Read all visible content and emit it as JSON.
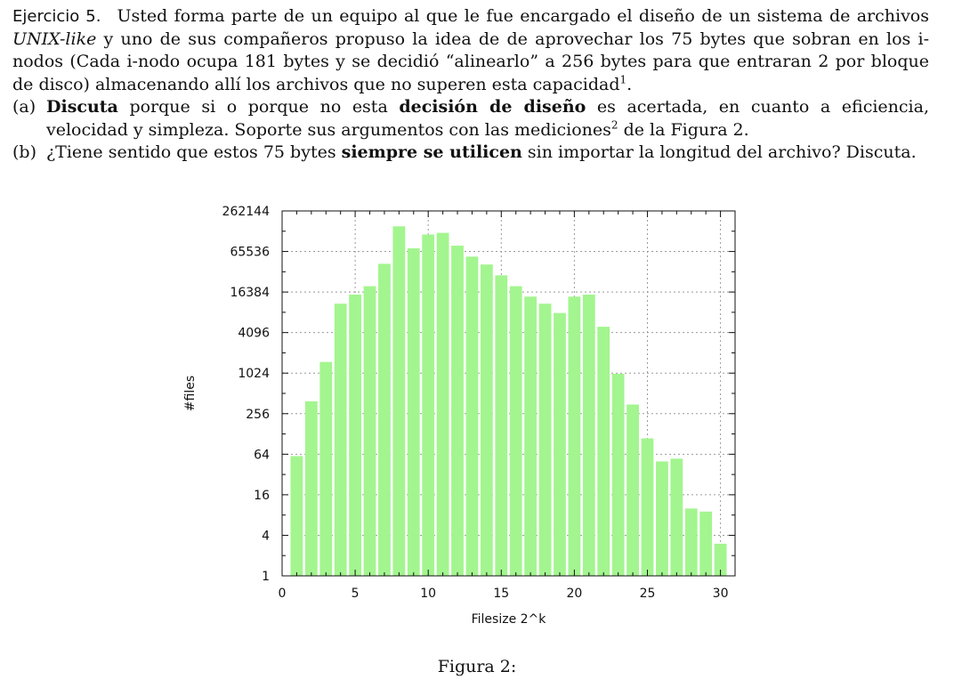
{
  "exercise": {
    "label": "Ejercicio 5.",
    "intro_1": "Usted forma parte de un equipo al que le fue encargado el diseño de un sistema de archivos",
    "intro_unix": "UNIX-like",
    "intro_2": "y uno de sus compañeros propuso la idea de de aprovechar los 75 bytes que sobran en los i-nodos (Cada i-nodo ocupa 181 bytes y se decidió “alinearlo” a 256 bytes para que entraran 2 por bloque de disco) almacenando allí los archivos que no superen esta capacidad",
    "intro_footnote": "1",
    "intro_end": ".",
    "items": [
      {
        "label": "(a)",
        "bold_1": "Discuta",
        "text_1": "porque si o porque no esta",
        "bold_2": "decisión de diseño",
        "text_2": "es acertada, en cuanto a eficiencia, velocidad y simpleza. Soporte sus argumentos con las mediciones",
        "footnote": "2",
        "text_3": "de la Figura 2."
      },
      {
        "label": "(b)",
        "text_1": "¿Tiene sentido que estos 75 bytes",
        "bold_1": "siempre se utilicen",
        "text_2": "sin importar la longitud del archivo? Discuta."
      }
    ]
  },
  "figure": {
    "caption": "Figura 2:"
  },
  "chart_data": {
    "type": "bar",
    "xlabel": "Filesize 2^k",
    "ylabel": "#files",
    "yscale": "log2",
    "xlim": [
      0,
      31
    ],
    "ylim": [
      1,
      262144
    ],
    "x_ticks": [
      0,
      5,
      10,
      15,
      20,
      25,
      30
    ],
    "y_ticks": [
      1,
      4,
      16,
      64,
      256,
      1024,
      4096,
      16384,
      65536,
      262144
    ],
    "grid": true,
    "bar_color": "#a3f58f",
    "x": [
      1,
      2,
      3,
      4,
      5,
      6,
      7,
      8,
      9,
      10,
      11,
      12,
      13,
      14,
      15,
      16,
      17,
      18,
      19,
      20,
      21,
      22,
      23,
      24,
      25,
      26,
      27,
      28,
      29,
      30
    ],
    "values": [
      60,
      390,
      1500,
      11000,
      15000,
      20000,
      43000,
      155000,
      73000,
      117000,
      124000,
      80000,
      55000,
      42000,
      29000,
      20000,
      14000,
      11000,
      8000,
      14000,
      15000,
      5000,
      1000,
      350,
      110,
      50,
      55,
      10,
      9,
      3
    ]
  }
}
